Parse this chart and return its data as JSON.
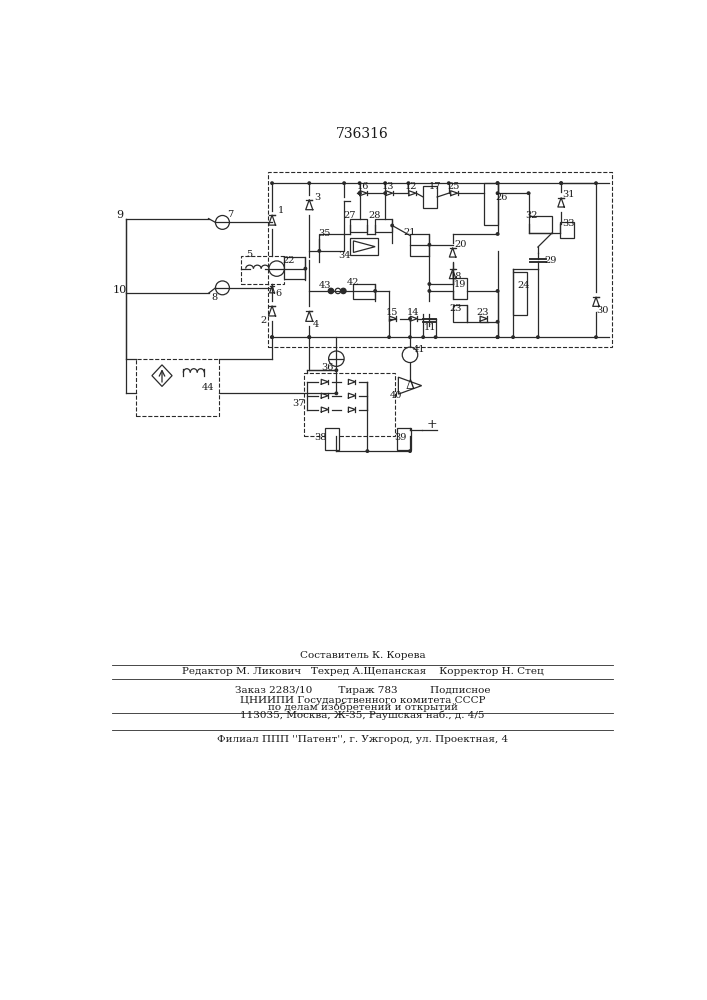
{
  "title": "736316",
  "background_color": "#ffffff",
  "line_color": "#2a2a2a",
  "text_color": "#1a1a1a",
  "fig_width": 7.07,
  "fig_height": 10.0,
  "footer": {
    "line1": "Составитель К. Корева",
    "line2": "Редактор М. Ликович   Техред А.Щепанская    Корректор Н. Стец",
    "line3": "Заказ 2283/10        Тираж 783          Подписное",
    "line4": "ЦНИИПИ Государственного комитета СССР",
    "line5": "по делам изобретений и открытий",
    "line6": "113035, Москва, Ж-35, Раушская наб., д. 4/5",
    "line7": "Филиал ППП ''Патент'', г. Ужгород, ул. Проектная, 4"
  }
}
